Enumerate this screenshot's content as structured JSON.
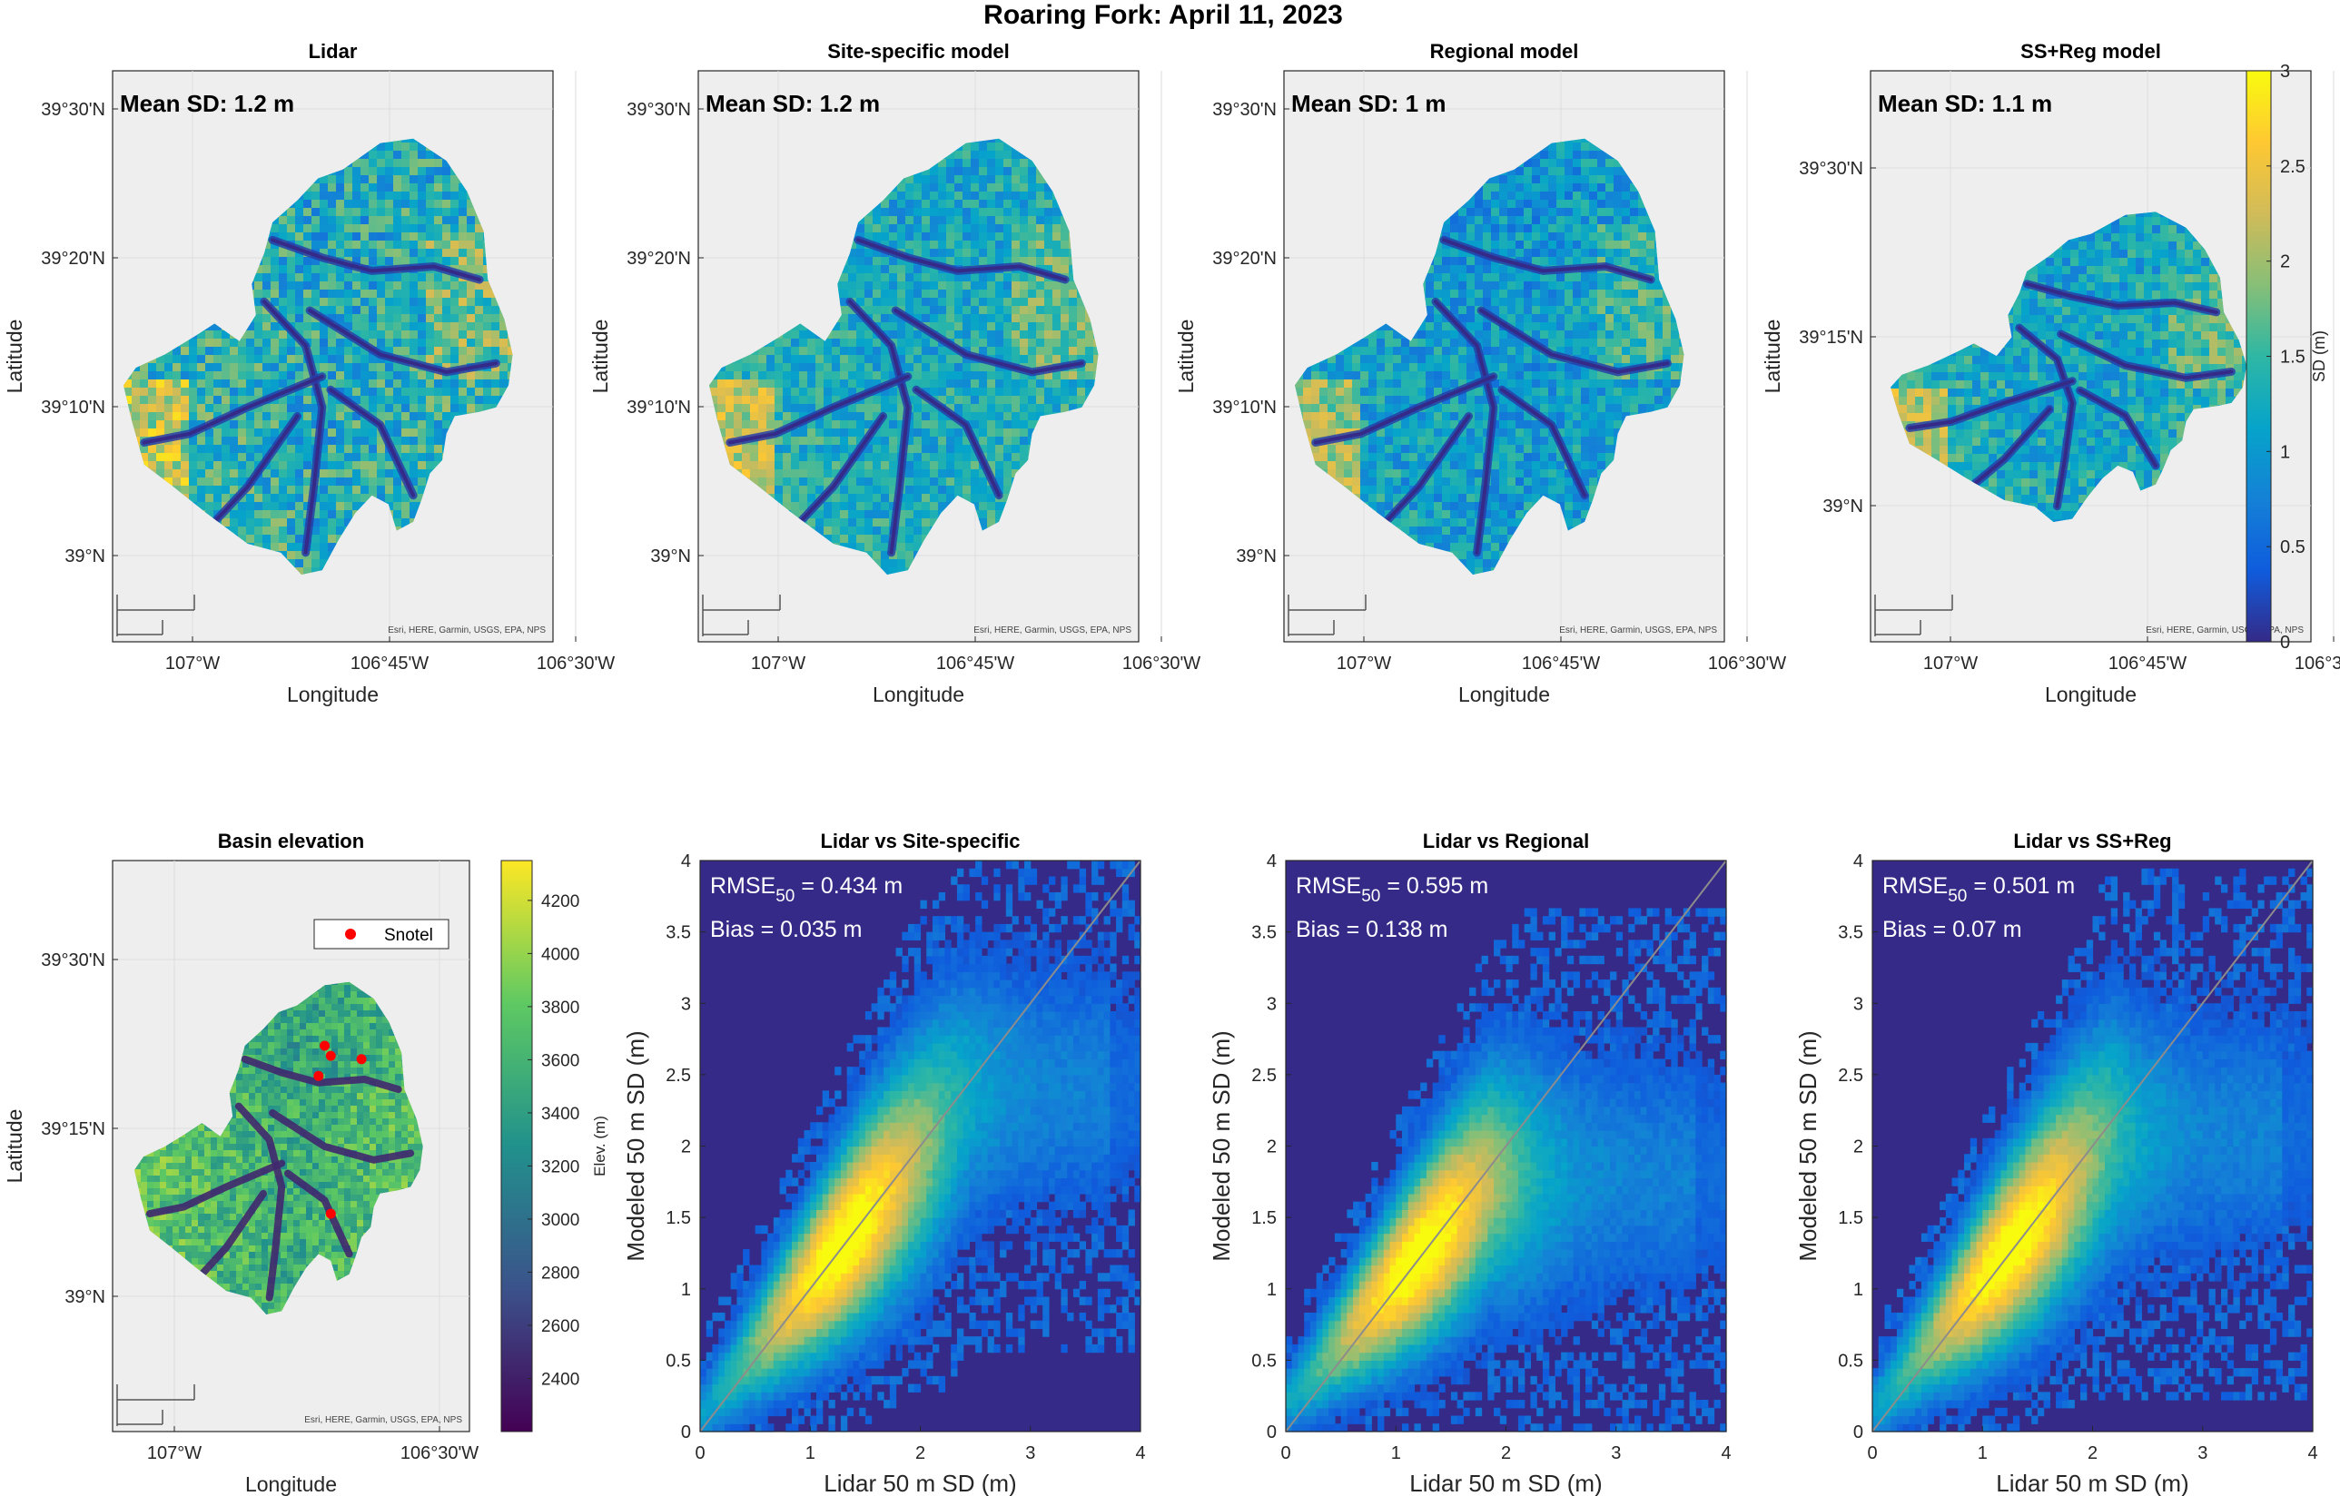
{
  "figure_title": "Roaring Fork: April 11, 2023",
  "maps": {
    "xlabel": "Longitude",
    "ylabel": "Latitude",
    "scalebar_km": "10 km",
    "scalebar_mi": "5 mi",
    "attribution": "Esri, HERE, Garmin, USGS, EPA, NPS",
    "lon_ticks": [
      "107°W",
      "106°45'W",
      "106°30'W"
    ],
    "panels": [
      {
        "title": "Lidar",
        "mean_text": "Mean SD: 1.2 m",
        "lat_ticks": [
          "39°30'N",
          "39°20'N",
          "39°10'N",
          "39°N"
        ],
        "extent": "wide"
      },
      {
        "title": "Site-specific model",
        "mean_text": "Mean SD: 1.2 m",
        "lat_ticks": [
          "39°30'N",
          "39°20'N",
          "39°10'N",
          "39°N"
        ],
        "extent": "wide"
      },
      {
        "title": "Regional model",
        "mean_text": "Mean SD: 1 m",
        "lat_ticks": [
          "39°30'N",
          "39°20'N",
          "39°10'N",
          "39°N"
        ],
        "extent": "wide"
      },
      {
        "title": "SS+Reg model",
        "mean_text": "Mean SD: 1.1 m",
        "lat_ticks": [
          "39°30'N",
          "39°15'N",
          "39°N"
        ],
        "extent": "narrow"
      }
    ],
    "sd_colorbar": {
      "label": "SD (m)",
      "min": 0,
      "max": 3,
      "ticks": [
        "0",
        "0.5",
        "1",
        "1.5",
        "2",
        "2.5",
        "3"
      ]
    }
  },
  "elevation_map": {
    "title": "Basin elevation",
    "xlabel": "Longitude",
    "ylabel": "Latitude",
    "lat_ticks": [
      "39°30'N",
      "39°15'N",
      "39°N"
    ],
    "lon_ticks": [
      "107°W",
      "106°30'W"
    ],
    "legend_label": "Snotel",
    "scalebar_km": "10 km",
    "scalebar_mi": "5 mi",
    "attribution": "Esri, HERE, Garmin, USGS, EPA, NPS",
    "colorbar": {
      "label": "Elev. (m)",
      "min": 2200,
      "max": 4350,
      "ticks": [
        "2400",
        "2600",
        "2800",
        "3000",
        "3200",
        "3400",
        "3600",
        "3800",
        "4000",
        "4200"
      ]
    }
  },
  "colors": {
    "parula": [
      "#352a87",
      "#0f5cdd",
      "#1481d6",
      "#06a4ca",
      "#2eb7a4",
      "#87bf77",
      "#d1bb59",
      "#fec832",
      "#f9fb0e"
    ],
    "viridis": [
      "#440154",
      "#3b528b",
      "#21918c",
      "#5ec962",
      "#fde725"
    ],
    "snotel": "#ff0000",
    "one_to_one": "#8c8c8c",
    "background_map": "#eeeeee"
  },
  "chart_data": [
    {
      "type": "heatmap",
      "title": "Lidar vs Site-specific",
      "xlabel": "Lidar 50 m SD (m)",
      "ylabel": "Modeled 50 m SD (m)",
      "xlim": [
        0,
        4
      ],
      "ylim": [
        0,
        4
      ],
      "xticks": [
        "0",
        "1",
        "2",
        "3",
        "4"
      ],
      "yticks": [
        "0",
        "0.5",
        "1",
        "1.5",
        "2",
        "2.5",
        "3",
        "3.5",
        "4"
      ],
      "rmse_label": "RMSE",
      "rmse_sub": "50",
      "rmse_value": " = 0.434 m",
      "bias_text": "Bias = 0.035 m",
      "density_center_slope": 0.92,
      "density_center_offset": 0.12,
      "density_peak_x": 1.3,
      "density_plateau": 2.4
    },
    {
      "type": "heatmap",
      "title": "Lidar vs Regional",
      "xlabel": "Lidar 50 m SD (m)",
      "ylabel": "Modeled 50 m SD (m)",
      "xlim": [
        0,
        4
      ],
      "ylim": [
        0,
        4
      ],
      "xticks": [
        "0",
        "1",
        "2",
        "3",
        "4"
      ],
      "yticks": [
        "0",
        "0.5",
        "1",
        "1.5",
        "2",
        "2.5",
        "3",
        "3.5",
        "4"
      ],
      "rmse_label": "RMSE",
      "rmse_sub": "50",
      "rmse_value": " = 0.595 m",
      "bias_text": "Bias = 0.138 m",
      "density_center_slope": 0.85,
      "density_center_offset": 0.2,
      "density_peak_x": 1.2,
      "density_plateau": 1.8
    },
    {
      "type": "heatmap",
      "title": "Lidar vs SS+Reg",
      "xlabel": "Lidar 50 m SD (m)",
      "ylabel": "Modeled 50 m SD (m)",
      "xlim": [
        0,
        4
      ],
      "ylim": [
        0,
        4
      ],
      "xticks": [
        "0",
        "1",
        "2",
        "3",
        "4"
      ],
      "yticks": [
        "0",
        "0.5",
        "1",
        "1.5",
        "2",
        "2.5",
        "3",
        "3.5",
        "4"
      ],
      "rmse_label": "RMSE",
      "rmse_sub": "50",
      "rmse_value": " = 0.501 m",
      "bias_text": "Bias = 0.07 m",
      "density_center_slope": 0.9,
      "density_center_offset": 0.15,
      "density_peak_x": 1.25,
      "density_plateau": 2.1
    }
  ]
}
